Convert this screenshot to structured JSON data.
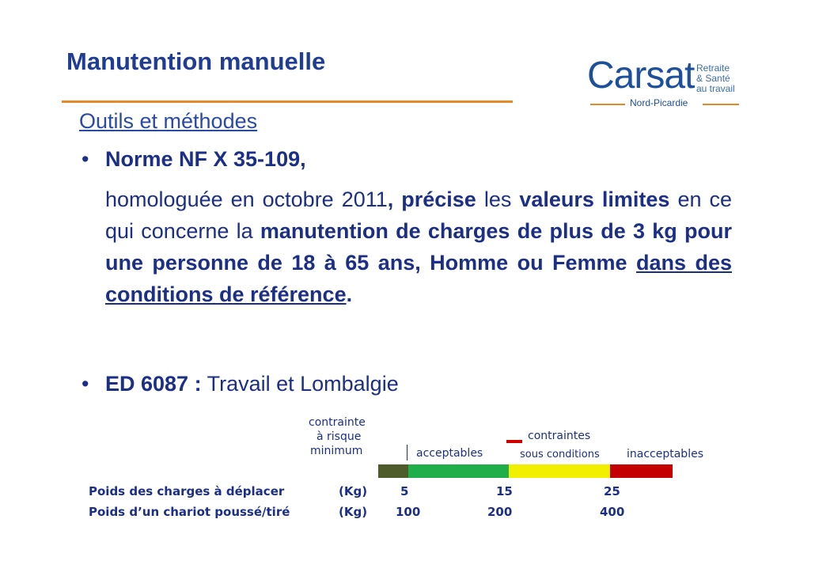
{
  "header": {
    "title": "Manutention manuelle",
    "subtitle": "Outils et méthodes"
  },
  "logo": {
    "name": "Carsat",
    "line1": "Retraite",
    "line2": "& Santé",
    "line3": "au travail",
    "region": "Nord-Picardie"
  },
  "bullets": [
    {
      "head": "Norme NF X 35-109,",
      "segments": [
        "homologuée en octobre 2011",
        ", précise",
        " les ",
        "valeurs limites",
        " en ce qui concerne la ",
        "manutention de charges de plus de 3 kg pour une personne de 18 à 65 ans, Homme ou Femme",
        " ",
        "dans des conditions de référence",
        "."
      ]
    },
    {
      "head": "ED 6087 :",
      "text": " Travail et Lombalgie"
    }
  ],
  "scale": {
    "min_label": [
      "contrainte",
      "à risque",
      "minimum"
    ],
    "acceptable": "acceptables",
    "conditional": [
      "contraintes",
      "sous conditions"
    ],
    "unacceptable": "inacceptables",
    "rows": [
      {
        "label": "Poids des charges à déplacer",
        "unit": "(Kg)",
        "values": [
          "5",
          "15",
          "25"
        ]
      },
      {
        "label": "Poids d’un chariot poussé/tiré",
        "unit": "(Kg)",
        "values": [
          "100",
          "200",
          "400"
        ]
      }
    ]
  }
}
